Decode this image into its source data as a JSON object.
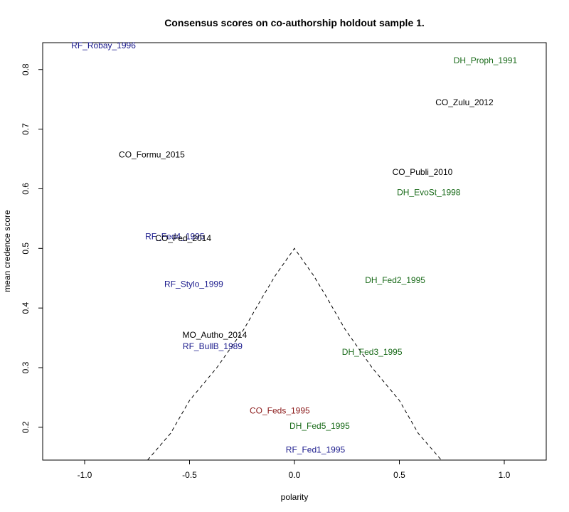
{
  "chart_data": {
    "type": "scatter",
    "title": "Consensus scores on co-authorship holdout sample 1.",
    "xlabel": "polarity",
    "ylabel": "mean credence score",
    "xlim": [
      -1.2,
      1.2
    ],
    "ylim": [
      0.145,
      0.845
    ],
    "x_ticks": [
      -1.0,
      -0.5,
      0.0,
      0.5,
      1.0
    ],
    "x_tick_labels": [
      "-1.0",
      "-0.5",
      "0.0",
      "0.5",
      "1.0"
    ],
    "y_ticks": [
      0.2,
      0.3,
      0.4,
      0.5,
      0.6,
      0.7,
      0.8
    ],
    "y_tick_labels": [
      "0.2",
      "0.3",
      "0.4",
      "0.5",
      "0.6",
      "0.7",
      "0.8"
    ],
    "colors": {
      "RF": "#1a1a8c",
      "DH": "#1a6b1a",
      "CO": "#000000",
      "MO": "#000000",
      "CO_Feds": "#8b1a1a"
    },
    "points": [
      {
        "label": "RF_Robay_1996",
        "x": -0.91,
        "y": 0.84,
        "color": "#1a1a8c"
      },
      {
        "label": "DH_Proph_1991",
        "x": 0.91,
        "y": 0.815,
        "color": "#1a6b1a"
      },
      {
        "label": "CO_Zulu_2012",
        "x": 0.81,
        "y": 0.745,
        "color": "#000000"
      },
      {
        "label": "CO_Formu_2015",
        "x": -0.68,
        "y": 0.657,
        "color": "#000000"
      },
      {
        "label": "CO_Publi_2010",
        "x": 0.61,
        "y": 0.628,
        "color": "#000000"
      },
      {
        "label": "DH_EvoSt_1998",
        "x": 0.64,
        "y": 0.594,
        "color": "#1a6b1a"
      },
      {
        "label": "RF_Fed4_1995",
        "x": -0.57,
        "y": 0.52,
        "color": "#1a1a8c"
      },
      {
        "label": "CO_Fed_2014",
        "x": -0.53,
        "y": 0.517,
        "color": "#000000"
      },
      {
        "label": "RF_Stylo_1999",
        "x": -0.48,
        "y": 0.44,
        "color": "#1a1a8c"
      },
      {
        "label": "DH_Fed2_1995",
        "x": 0.48,
        "y": 0.447,
        "color": "#1a6b1a"
      },
      {
        "label": "MO_Autho_2014",
        "x": -0.38,
        "y": 0.355,
        "color": "#000000"
      },
      {
        "label": "RF_BullB_1989",
        "x": -0.39,
        "y": 0.336,
        "color": "#1a1a8c"
      },
      {
        "label": "DH_Fed3_1995",
        "x": 0.37,
        "y": 0.326,
        "color": "#1a6b1a"
      },
      {
        "label": "CO_Feds_1995",
        "x": -0.07,
        "y": 0.228,
        "color": "#8b1a1a"
      },
      {
        "label": "DH_Fed5_1995",
        "x": 0.12,
        "y": 0.202,
        "color": "#1a6b1a"
      },
      {
        "label": "RF_Fed1_1995",
        "x": 0.1,
        "y": 0.162,
        "color": "#1a1a8c"
      }
    ],
    "funnel": [
      {
        "x": -0.7,
        "y": 0.145
      },
      {
        "x": -0.59,
        "y": 0.19
      },
      {
        "x": -0.5,
        "y": 0.245
      },
      {
        "x": -0.37,
        "y": 0.3
      },
      {
        "x": -0.24,
        "y": 0.365
      },
      {
        "x": -0.15,
        "y": 0.42
      },
      {
        "x": -0.09,
        "y": 0.455
      },
      {
        "x": 0.0,
        "y": 0.5
      },
      {
        "x": 0.09,
        "y": 0.455
      },
      {
        "x": 0.15,
        "y": 0.42
      },
      {
        "x": 0.24,
        "y": 0.365
      },
      {
        "x": 0.37,
        "y": 0.3
      },
      {
        "x": 0.5,
        "y": 0.245
      },
      {
        "x": 0.59,
        "y": 0.19
      },
      {
        "x": 0.7,
        "y": 0.145
      }
    ]
  }
}
